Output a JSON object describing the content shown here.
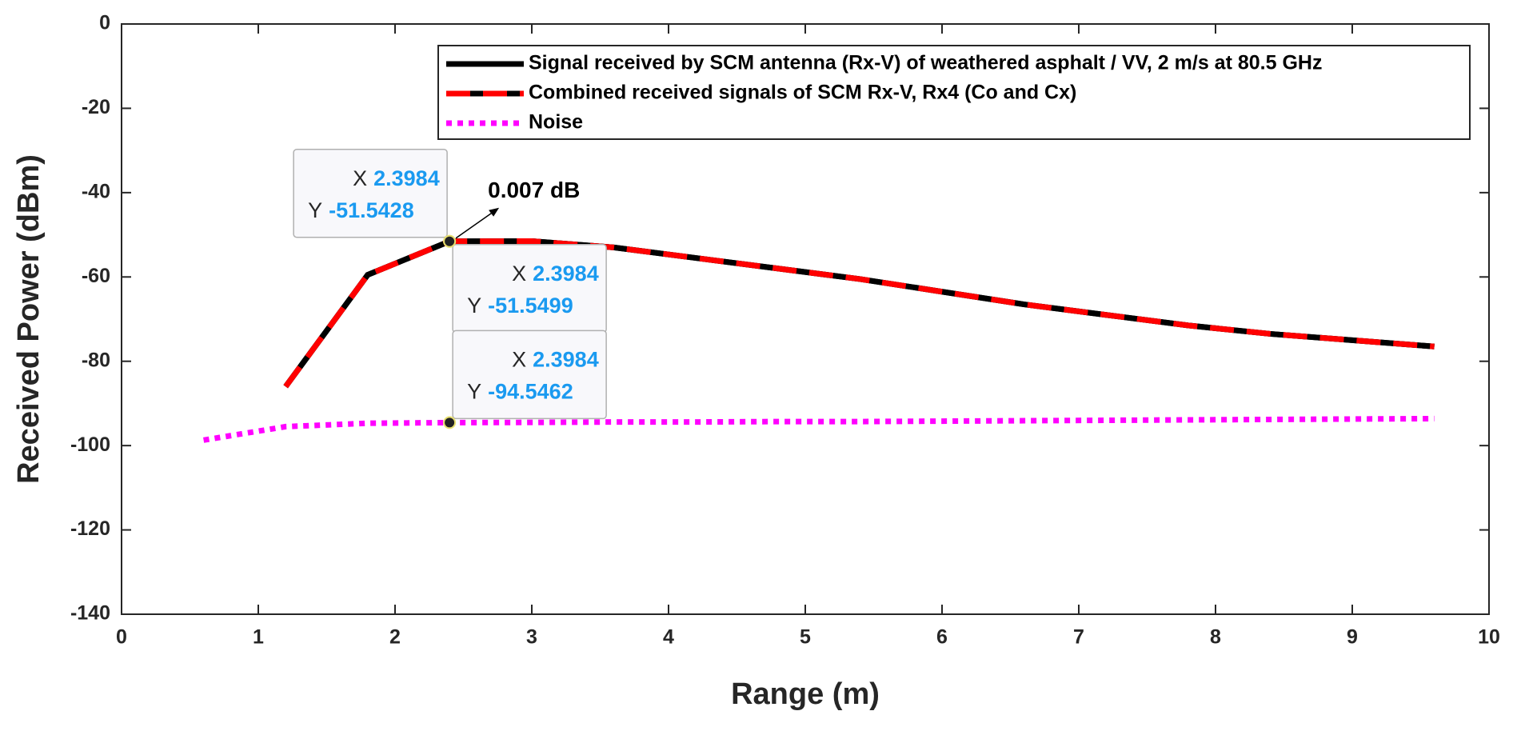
{
  "chart_data": {
    "type": "line",
    "x_label": "Range (m)",
    "y_label": "Received Power (dBm)",
    "xlim": [
      0,
      10
    ],
    "ylim": [
      -140,
      0
    ],
    "xticks": [
      0,
      1,
      2,
      3,
      4,
      5,
      6,
      7,
      8,
      9,
      10
    ],
    "yticks": [
      -140,
      -120,
      -100,
      -80,
      -60,
      -40,
      -20,
      0
    ],
    "legend": "upper right",
    "series": [
      {
        "name": "Signal received by SCM antenna (Rx-V) of weathered asphalt / VV, 2 m/s at 80.5 GHz",
        "color": "#000000",
        "style": "solid",
        "x": [
          1.2,
          1.8,
          2.3984,
          3.0,
          3.6,
          4.2,
          4.8,
          5.4,
          6.0,
          6.6,
          7.2,
          7.8,
          8.4,
          9.0,
          9.6
        ],
        "values": [
          -86,
          -59.5,
          -51.5428,
          -51.5,
          -53,
          -55.5,
          -58,
          -60.5,
          -63.5,
          -66.5,
          -69,
          -71.5,
          -73.5,
          -75,
          -76.5
        ]
      },
      {
        "name": "Combined received signals of SCM Rx-V, Rx4 (Co and Cx)",
        "color": "#ff0000",
        "style": "dashed",
        "x": [
          1.2,
          1.8,
          2.3984,
          3.0,
          3.6,
          4.2,
          4.8,
          5.4,
          6.0,
          6.6,
          7.2,
          7.8,
          8.4,
          9.0,
          9.6
        ],
        "values": [
          -86,
          -59.5,
          -51.5499,
          -51.5,
          -53,
          -55.5,
          -58,
          -60.5,
          -63.5,
          -66.5,
          -69,
          -71.5,
          -73.5,
          -75,
          -76.5
        ]
      },
      {
        "name": "Noise",
        "color": "#ff00ff",
        "style": "dotted",
        "x": [
          0.6,
          1.2,
          1.8,
          2.3984,
          3.0,
          3.6,
          4.2,
          4.8,
          5.4,
          6.0,
          6.6,
          7.2,
          7.8,
          8.4,
          9.0,
          9.6
        ],
        "values": [
          -98.7,
          -95.5,
          -94.7,
          -94.5462,
          -94.5,
          -94.4,
          -94.4,
          -94.3,
          -94.3,
          -94.2,
          -94.1,
          -94,
          -93.9,
          -93.8,
          -93.7,
          -93.6
        ]
      }
    ],
    "datatips": [
      {
        "x_label": "X",
        "x": 2.3984,
        "y_label": "Y",
        "y": -51.5428
      },
      {
        "x_label": "X",
        "x": 2.3984,
        "y_label": "Y",
        "y": -51.5499
      },
      {
        "x_label": "X",
        "x": 2.3984,
        "y_label": "Y",
        "y": -94.5462
      }
    ],
    "annotation": "0.007 dB"
  }
}
